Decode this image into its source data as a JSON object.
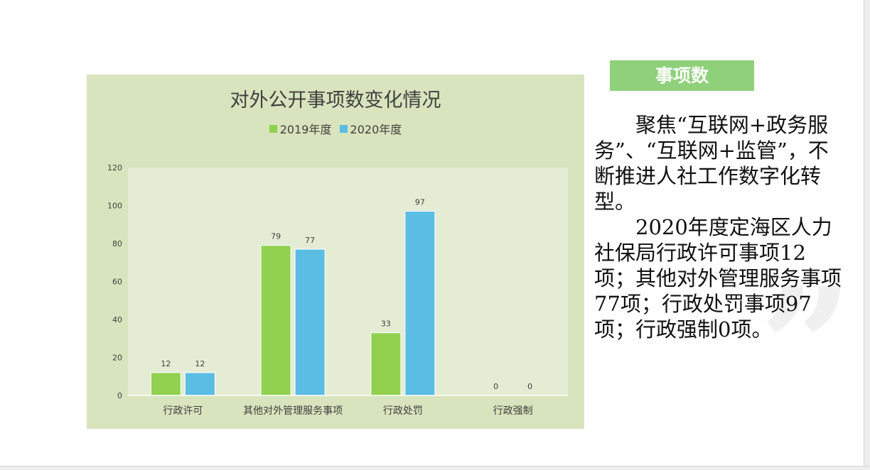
{
  "badge": {
    "label": "事项数"
  },
  "paragraphs": [
    "聚焦“互联网+政务服务”、“互联网+监管”，不断推进人社工作数字化转型。",
    "2020年度定海区人力社保局行政许可事项12项；其他对外管理服务事项77项；行政处罚事项97项；行政强制0项。"
  ],
  "decoration": {
    "quote_glyph": "”"
  },
  "colors": {
    "chart_background": "#d7e4bd",
    "plot_background": "#e4ecd4",
    "series_2019": "#92d050",
    "series_2020": "#5bbde4",
    "badge": "#8fd17a"
  },
  "chart_data": {
    "type": "bar",
    "title": "对外公开事项数变化情况",
    "xlabel": "",
    "ylabel": "",
    "categories": [
      "行政许可",
      "其他对外管理服务事项",
      "行政处罚",
      "行政强制"
    ],
    "series": [
      {
        "name": "2019年度",
        "color": "#92d050",
        "values": [
          12,
          79,
          33,
          0
        ]
      },
      {
        "name": "2020年度",
        "color": "#5bbde4",
        "values": [
          12,
          77,
          97,
          0
        ]
      }
    ],
    "ylim": [
      0,
      120
    ],
    "yticks": [
      0,
      20,
      40,
      60,
      80,
      100,
      120
    ],
    "grid": false,
    "legend_position": "top",
    "data_labels": true
  }
}
